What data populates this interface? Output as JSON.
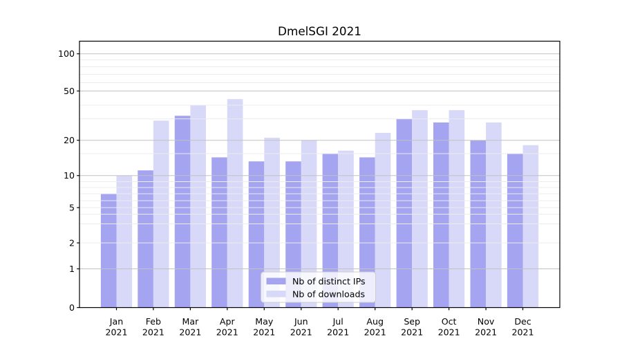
{
  "chart_data": {
    "type": "bar",
    "title": "DmelSGI 2021",
    "categories": [
      {
        "month": "Jan",
        "year": "2021"
      },
      {
        "month": "Feb",
        "year": "2021"
      },
      {
        "month": "Mar",
        "year": "2021"
      },
      {
        "month": "Apr",
        "year": "2021"
      },
      {
        "month": "May",
        "year": "2021"
      },
      {
        "month": "Jun",
        "year": "2021"
      },
      {
        "month": "Jul",
        "year": "2021"
      },
      {
        "month": "Aug",
        "year": "2021"
      },
      {
        "month": "Sep",
        "year": "2021"
      },
      {
        "month": "Oct",
        "year": "2021"
      },
      {
        "month": "Nov",
        "year": "2021"
      },
      {
        "month": "Dec",
        "year": "2021"
      }
    ],
    "series": [
      {
        "name": "Nb of distinct IPs",
        "color": "#a4a4f0",
        "values": [
          7,
          11,
          32,
          14,
          13,
          13,
          15,
          14,
          30,
          28,
          20,
          15
        ]
      },
      {
        "name": "Nb of downloads",
        "color": "#d8d8f8",
        "values": [
          10,
          29,
          40,
          44,
          21,
          20,
          16,
          23,
          36,
          36,
          28,
          18
        ]
      }
    ],
    "y_axis": {
      "scale": "asinh-like (log above 1, linear to 0)",
      "ticks": [
        {
          "v": 100,
          "label": "100"
        },
        {
          "v": 50,
          "label": "50"
        },
        {
          "v": 20,
          "label": "20"
        },
        {
          "v": 10,
          "label": "10"
        },
        {
          "v": 5,
          "label": "5"
        },
        {
          "v": 2,
          "label": "2"
        },
        {
          "v": 1,
          "label": "1"
        },
        {
          "v": 0,
          "label": "0"
        }
      ],
      "ylim": [
        0,
        128
      ]
    },
    "grid": {
      "major": [
        1,
        10,
        20,
        50,
        100
      ],
      "minor": [
        2,
        3,
        4,
        5,
        6,
        7,
        8,
        9,
        15,
        30,
        40,
        60,
        70,
        80,
        90
      ],
      "major_color": "#c2c2c2",
      "minor_color": "#ececec",
      "grid_above_bars": true
    },
    "legend": {
      "position": "lower center",
      "entries": [
        "Nb of distinct IPs",
        "Nb of downloads"
      ]
    }
  }
}
